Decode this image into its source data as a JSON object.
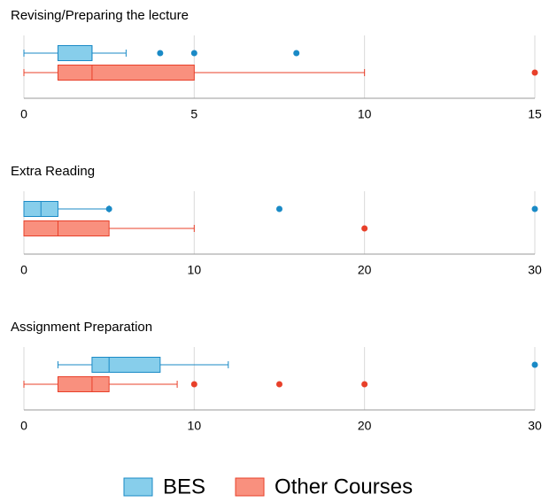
{
  "chart_data": [
    {
      "type": "box",
      "title": "Revising/Preparing the lecture",
      "xlim": [
        0,
        15
      ],
      "xticks": [
        0,
        5,
        10,
        15
      ],
      "grid": true,
      "series": [
        {
          "name": "BES",
          "color": "#1a8ac6",
          "fill": "#87ceeb",
          "min": 0,
          "q1": 1,
          "median": 2,
          "q3": 2,
          "max": 3,
          "outliers": [
            4,
            5,
            8
          ]
        },
        {
          "name": "Other Courses",
          "color": "#e8402a",
          "fill": "#f9907e",
          "min": 0,
          "q1": 1,
          "median": 2,
          "q3": 5,
          "max": 10,
          "outliers": [
            15
          ]
        }
      ]
    },
    {
      "type": "box",
      "title": "Extra Reading",
      "xlim": [
        0,
        30
      ],
      "xticks": [
        0,
        10,
        20,
        30
      ],
      "grid": true,
      "series": [
        {
          "name": "BES",
          "color": "#1a8ac6",
          "fill": "#87ceeb",
          "min": 0,
          "q1": 0,
          "median": 1,
          "q3": 2,
          "max": 5,
          "outliers": [
            5,
            15,
            30
          ]
        },
        {
          "name": "Other Courses",
          "color": "#e8402a",
          "fill": "#f9907e",
          "min": 0,
          "q1": 0,
          "median": 2,
          "q3": 5,
          "max": 10,
          "outliers": [
            20
          ]
        }
      ]
    },
    {
      "type": "box",
      "title": "Assignment Preparation",
      "xlim": [
        0,
        30
      ],
      "xticks": [
        0,
        10,
        20,
        30
      ],
      "grid": true,
      "series": [
        {
          "name": "BES",
          "color": "#1a8ac6",
          "fill": "#87ceeb",
          "min": 2,
          "q1": 4,
          "median": 5,
          "q3": 8,
          "max": 12,
          "outliers": [
            30
          ]
        },
        {
          "name": "Other Courses",
          "color": "#e8402a",
          "fill": "#f9907e",
          "min": 0,
          "q1": 2,
          "median": 4,
          "q3": 5,
          "max": 9,
          "outliers": [
            10,
            15,
            20
          ]
        }
      ]
    }
  ]
}
